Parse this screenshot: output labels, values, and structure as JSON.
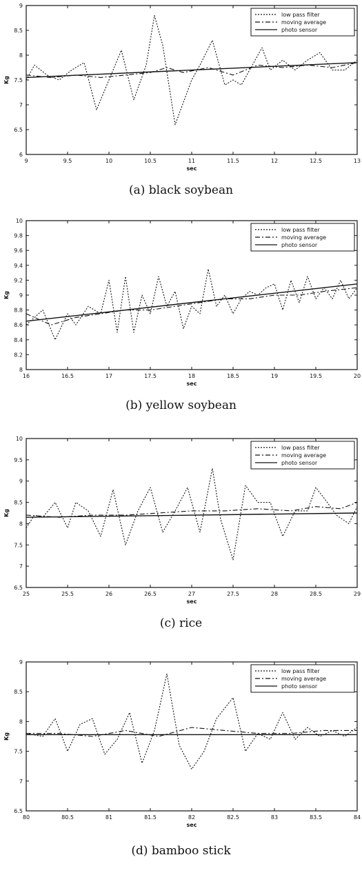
{
  "chart_data": [
    {
      "type": "line",
      "caption": "(a) black soybean",
      "xlabel": "sec",
      "ylabel": "Kg",
      "xlim": [
        9,
        13
      ],
      "ylim": [
        6,
        9
      ],
      "xticks": [
        9,
        9.5,
        10,
        10.5,
        11,
        11.5,
        12,
        12.5,
        13
      ],
      "xtick_labels": [
        "9",
        "9.5",
        "10",
        "10.5",
        "11",
        "11.5",
        "12",
        "12.5",
        "13"
      ],
      "yticks": [
        6,
        6.5,
        7,
        7.5,
        8,
        8.5,
        9
      ],
      "ytick_labels": [
        "6",
        "6.5",
        "7",
        "7.5",
        "8",
        "8.5",
        "9"
      ],
      "legend_position": "top-right",
      "series": [
        {
          "name": "low pass filter",
          "style": "dotted",
          "x": [
            9,
            9.1,
            9.25,
            9.4,
            9.55,
            9.7,
            9.85,
            10,
            10.15,
            10.3,
            10.45,
            10.55,
            10.65,
            10.8,
            11,
            11.1,
            11.25,
            11.4,
            11.5,
            11.6,
            11.7,
            11.85,
            11.95,
            12.1,
            12.25,
            12.4,
            12.55,
            12.7,
            12.85,
            13
          ],
          "y": [
            7.5,
            7.8,
            7.6,
            7.5,
            7.7,
            7.85,
            6.9,
            7.5,
            8.1,
            7.1,
            7.8,
            8.8,
            8.2,
            6.6,
            7.5,
            7.8,
            8.3,
            7.4,
            7.5,
            7.4,
            7.7,
            8.15,
            7.7,
            7.9,
            7.7,
            7.9,
            8.05,
            7.7,
            7.7,
            7.9
          ]
        },
        {
          "name": "moving average",
          "style": "dashed",
          "x": [
            9,
            9.3,
            9.6,
            9.9,
            10.2,
            10.5,
            10.7,
            10.9,
            11.2,
            11.5,
            11.8,
            12.1,
            12.4,
            12.7,
            13
          ],
          "y": [
            7.6,
            7.55,
            7.6,
            7.55,
            7.6,
            7.65,
            7.75,
            7.65,
            7.75,
            7.6,
            7.8,
            7.75,
            7.8,
            7.75,
            7.85
          ]
        },
        {
          "name": "photo sensor",
          "style": "solid",
          "x": [
            9,
            13
          ],
          "y": [
            7.55,
            7.85
          ]
        }
      ]
    },
    {
      "type": "line",
      "caption": "(b) yellow soybean",
      "xlabel": "sec",
      "ylabel": "Kg",
      "xlim": [
        16,
        20
      ],
      "ylim": [
        8,
        10
      ],
      "xticks": [
        16,
        16.5,
        17,
        17.5,
        18,
        18.5,
        19,
        19.5,
        20
      ],
      "xtick_labels": [
        "16",
        "16.5",
        "17",
        "17.5",
        "18",
        "18.5",
        "19",
        "19.5",
        "20"
      ],
      "yticks": [
        8,
        8.2,
        8.4,
        8.6,
        8.8,
        9,
        9.2,
        9.4,
        9.6,
        9.8,
        10
      ],
      "ytick_labels": [
        "8",
        "8.2",
        "8.4",
        "8.6",
        "8.8",
        "9",
        "9.2",
        "9.4",
        "9.6",
        "9.8",
        "10"
      ],
      "legend_position": "top-right",
      "series": [
        {
          "name": "low pass filter",
          "style": "dotted",
          "x": [
            16,
            16.1,
            16.2,
            16.35,
            16.5,
            16.6,
            16.75,
            16.9,
            17,
            17.1,
            17.2,
            17.3,
            17.4,
            17.5,
            17.6,
            17.7,
            17.8,
            17.9,
            18,
            18.1,
            18.2,
            18.3,
            18.4,
            18.5,
            18.6,
            18.7,
            18.8,
            18.9,
            19,
            19.1,
            19.2,
            19.3,
            19.4,
            19.5,
            19.6,
            19.7,
            19.8,
            19.9,
            20
          ],
          "y": [
            8.6,
            8.7,
            8.8,
            8.4,
            8.75,
            8.6,
            8.85,
            8.75,
            9.2,
            8.5,
            9.25,
            8.5,
            9.0,
            8.75,
            9.25,
            8.85,
            9.05,
            8.55,
            8.85,
            8.75,
            9.35,
            8.85,
            9.0,
            8.75,
            8.95,
            9.05,
            9.0,
            9.1,
            9.15,
            8.8,
            9.2,
            8.9,
            9.25,
            8.95,
            9.1,
            8.95,
            9.2,
            8.95,
            9.1
          ]
        },
        {
          "name": "moving average",
          "style": "dashed",
          "x": [
            16,
            16.3,
            16.6,
            16.9,
            17.2,
            17.5,
            17.8,
            18.1,
            18.4,
            18.7,
            19,
            19.3,
            19.6,
            20
          ],
          "y": [
            8.75,
            8.6,
            8.7,
            8.75,
            8.8,
            8.8,
            8.85,
            8.9,
            8.95,
            8.95,
            9.0,
            9.0,
            9.05,
            9.1
          ]
        },
        {
          "name": "photo sensor",
          "style": "solid",
          "x": [
            16,
            20
          ],
          "y": [
            8.65,
            9.15
          ]
        }
      ]
    },
    {
      "type": "line",
      "caption": "(c) rice",
      "xlabel": "sec",
      "ylabel": "Kg",
      "xlim": [
        25,
        29
      ],
      "ylim": [
        6.5,
        10
      ],
      "xticks": [
        25,
        25.5,
        26,
        26.5,
        27,
        27.5,
        28,
        28.5,
        29
      ],
      "xtick_labels": [
        "25",
        "25.5",
        "26",
        "26.5",
        "27",
        "27.5",
        "28",
        "28.5",
        "29"
      ],
      "yticks": [
        6.5,
        7,
        7.5,
        8,
        8.5,
        9,
        9.5,
        10
      ],
      "ytick_labels": [
        "6.5",
        "7",
        "7.5",
        "8",
        "8.5",
        "9",
        "9.5",
        "10"
      ],
      "legend_position": "top-right",
      "series": [
        {
          "name": "low pass filter",
          "style": "dotted",
          "x": [
            25,
            25.1,
            25.2,
            25.35,
            25.5,
            25.6,
            25.75,
            25.9,
            26.05,
            26.2,
            26.35,
            26.5,
            26.65,
            26.8,
            26.95,
            27.1,
            27.25,
            27.35,
            27.5,
            27.65,
            27.8,
            27.95,
            28.1,
            28.25,
            28.4,
            28.5,
            28.6,
            28.75,
            28.9,
            29
          ],
          "y": [
            7.9,
            8.2,
            8.15,
            8.5,
            7.9,
            8.5,
            8.3,
            7.7,
            8.8,
            7.5,
            8.3,
            8.85,
            7.8,
            8.3,
            8.85,
            7.8,
            9.3,
            8.1,
            7.15,
            8.9,
            8.5,
            8.5,
            7.7,
            8.3,
            8.3,
            8.85,
            8.6,
            8.2,
            8.0,
            8.4
          ]
        },
        {
          "name": "moving average",
          "style": "dashed",
          "x": [
            25,
            25.4,
            25.8,
            26.2,
            26.6,
            27,
            27.4,
            27.8,
            28.2,
            28.5,
            28.8,
            29
          ],
          "y": [
            8.2,
            8.15,
            8.2,
            8.2,
            8.25,
            8.3,
            8.3,
            8.35,
            8.3,
            8.4,
            8.35,
            8.5
          ]
        },
        {
          "name": "photo sensor",
          "style": "solid",
          "x": [
            25,
            29
          ],
          "y": [
            8.15,
            8.25
          ]
        }
      ]
    },
    {
      "type": "line",
      "caption": "(d) bamboo stick",
      "xlabel": "sec",
      "ylabel": "Kg",
      "xlim": [
        80,
        84
      ],
      "ylim": [
        6.5,
        9
      ],
      "xticks": [
        80,
        80.5,
        81,
        81.5,
        82,
        82.5,
        83,
        83.5,
        84
      ],
      "xtick_labels": [
        "80",
        "80.5",
        "81",
        "81.5",
        "82",
        "82.5",
        "83",
        "83.5",
        "84"
      ],
      "yticks": [
        6.5,
        7,
        7.5,
        8,
        8.5,
        9
      ],
      "ytick_labels": [
        "6.5",
        "7",
        "7.5",
        "8",
        "8.5",
        "9"
      ],
      "legend_position": "top-right",
      "series": [
        {
          "name": "low pass filter",
          "style": "dotted",
          "x": [
            80,
            80.2,
            80.35,
            80.5,
            80.65,
            80.8,
            80.95,
            81.1,
            81.25,
            81.4,
            81.55,
            81.7,
            81.85,
            82,
            82.15,
            82.3,
            82.5,
            82.65,
            82.8,
            82.95,
            83.1,
            83.25,
            83.4,
            83.55,
            83.7,
            83.85,
            84
          ],
          "y": [
            7.8,
            7.75,
            8.05,
            7.5,
            7.95,
            8.05,
            7.45,
            7.7,
            8.15,
            7.3,
            7.85,
            8.8,
            7.6,
            7.2,
            7.5,
            8.05,
            8.4,
            7.5,
            7.8,
            7.7,
            8.15,
            7.7,
            7.9,
            7.75,
            7.85,
            7.75,
            7.9
          ]
        },
        {
          "name": "moving average",
          "style": "dashed",
          "x": [
            80,
            80.4,
            80.8,
            81.2,
            81.6,
            82,
            82.4,
            82.8,
            83.2,
            83.6,
            84
          ],
          "y": [
            7.8,
            7.8,
            7.75,
            7.85,
            7.75,
            7.9,
            7.85,
            7.8,
            7.8,
            7.85,
            7.85
          ]
        },
        {
          "name": "photo sensor",
          "style": "solid",
          "x": [
            80,
            84
          ],
          "y": [
            7.78,
            7.78
          ]
        }
      ]
    }
  ]
}
